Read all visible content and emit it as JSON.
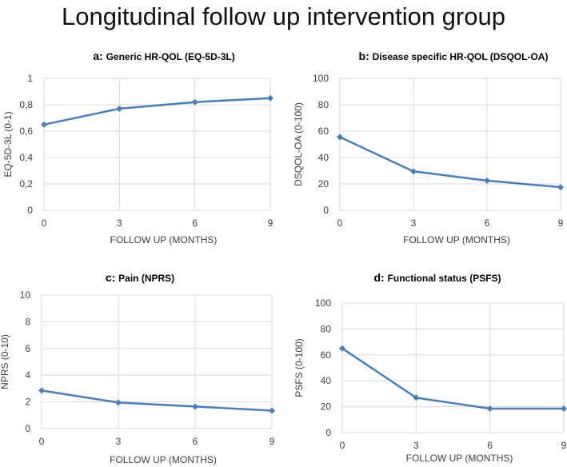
{
  "title": "Longitudinal follow up intervention group",
  "series_color": "#4a7ebb",
  "chart_data": [
    {
      "type": "line",
      "title_prefix": "a:",
      "title_text": "Generic HR-QOL (EQ-5D-3L)",
      "x": [
        0,
        3,
        6,
        9
      ],
      "tick_labels": [
        "0",
        "1",
        "0,8",
        "0,6",
        "0,4",
        "0,2",
        "0"
      ],
      "values": [
        0.65,
        0.77,
        0.82,
        0.85
      ],
      "ylim": [
        0,
        1
      ],
      "yticks": [
        0,
        0.2,
        0.4,
        0.6,
        0.8,
        1
      ],
      "ytick_labels": [
        "0",
        "0,2",
        "0,4",
        "0,6",
        "0,8",
        "1"
      ],
      "xticks": [
        0,
        3,
        6,
        9
      ],
      "xlabel": "FOLLOW UP (MONTHS)",
      "ylabel": "EQ-5D-3L (0-1)"
    },
    {
      "type": "line",
      "title_prefix": "b:",
      "title_text": "Disease specific HR-QOL (DSQOL-OA)",
      "x": [
        0,
        3,
        6,
        9
      ],
      "values": [
        55.5,
        29.5,
        22.5,
        17.5
      ],
      "ylim": [
        0,
        100
      ],
      "yticks": [
        0,
        20,
        40,
        60,
        80,
        100
      ],
      "ytick_labels": [
        "0",
        "20",
        "40",
        "60",
        "80",
        "100"
      ],
      "xticks": [
        0,
        3,
        6,
        9
      ],
      "xlabel": "FOLLOW UP (MONTHS)",
      "ylabel": "DSQOL-OA (0-100)"
    },
    {
      "type": "line",
      "title_prefix": "c:",
      "title_text": "Pain (NPRS)",
      "x": [
        0,
        3,
        6,
        9
      ],
      "values": [
        2.85,
        1.95,
        1.65,
        1.35
      ],
      "ylim": [
        0,
        10
      ],
      "yticks": [
        0,
        2,
        4,
        6,
        8,
        10
      ],
      "ytick_labels": [
        "0",
        "2",
        "4",
        "6",
        "8",
        "10"
      ],
      "xticks": [
        0,
        3,
        6,
        9
      ],
      "xlabel": "FOLLOW UP (MONTHS)",
      "ylabel": "NPRS (0-10)"
    },
    {
      "type": "line",
      "title_prefix": "d:",
      "title_text": "Functional status (PSFS)",
      "x": [
        0,
        3,
        6,
        9
      ],
      "values": [
        65,
        27,
        18.5,
        18.5
      ],
      "ylim": [
        0,
        100
      ],
      "yticks": [
        0,
        20,
        40,
        60,
        80,
        100
      ],
      "ytick_labels": [
        "0",
        "20",
        "40",
        "60",
        "80",
        "100"
      ],
      "xticks": [
        0,
        3,
        6,
        9
      ],
      "xlabel": "FOLLOW UP (MONTHS)",
      "ylabel": "PSFS (0-100)"
    }
  ]
}
